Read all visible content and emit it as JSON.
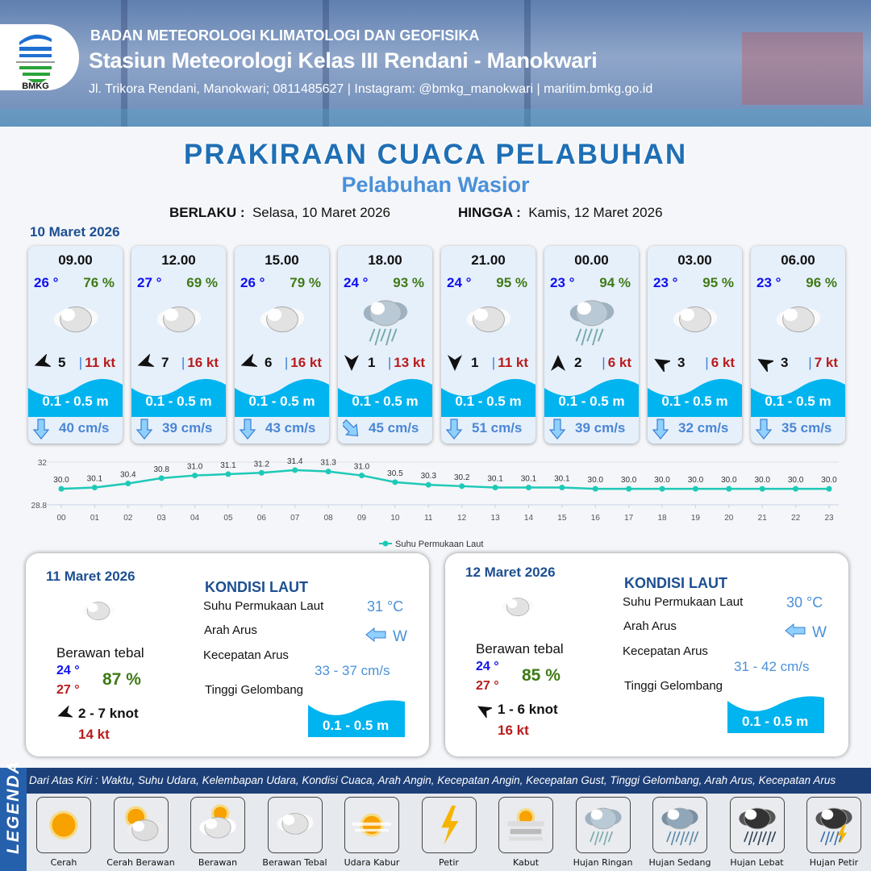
{
  "header": {
    "org": "BADAN METEOROLOGI KLIMATOLOGI DAN GEOFISIKA",
    "station": "Stasiun Meteorologi Kelas III Rendani - Manokwari",
    "contact": "Jl. Trikora Rendani, Manokwari; 0811485627 | Instagram: @bmkg_manokwari | maritim.bmkg.go.id",
    "logo_text": "BMKG"
  },
  "title": "PRAKIRAAN CUACA PELABUHAN",
  "subtitle": "Pelabuhan Wasior",
  "validity": {
    "from_label": "BERLAKU :",
    "from": "Selasa, 10 Maret 2026",
    "to_label": "HINGGA :",
    "to": "Kamis, 12 Maret 2026"
  },
  "day1": {
    "date": "10 Maret 2026",
    "cards": [
      {
        "time": "09.00",
        "temp": "26 °",
        "hum": "76 %",
        "weather": "berawan-tebal",
        "wind_dir_deg": 250,
        "wind": "5",
        "gust": "11 kt",
        "wave": "0.1 - 0.5 m",
        "current_dir_deg": 180,
        "current": "40 cm/s"
      },
      {
        "time": "12.00",
        "temp": "27 °",
        "hum": "69 %",
        "weather": "berawan-tebal",
        "wind_dir_deg": 250,
        "wind": "7",
        "gust": "16 kt",
        "wave": "0.1 - 0.5 m",
        "current_dir_deg": 180,
        "current": "39 cm/s"
      },
      {
        "time": "15.00",
        "temp": "26 °",
        "hum": "79 %",
        "weather": "berawan-tebal",
        "wind_dir_deg": 250,
        "wind": "6",
        "gust": "16 kt",
        "wave": "0.1 - 0.5 m",
        "current_dir_deg": 180,
        "current": "43 cm/s"
      },
      {
        "time": "18.00",
        "temp": "24 °",
        "hum": "93 %",
        "weather": "hujan-ringan",
        "wind_dir_deg": 180,
        "wind": "1",
        "gust": "13 kt",
        "wave": "0.1 - 0.5 m",
        "current_dir_deg": 135,
        "current": "45 cm/s"
      },
      {
        "time": "21.00",
        "temp": "24 °",
        "hum": "95 %",
        "weather": "berawan-tebal",
        "wind_dir_deg": 180,
        "wind": "1",
        "gust": "11 kt",
        "wave": "0.1 - 0.5 m",
        "current_dir_deg": 180,
        "current": "51 cm/s"
      },
      {
        "time": "00.00",
        "temp": "23 °",
        "hum": "94 %",
        "weather": "hujan-ringan",
        "wind_dir_deg": 0,
        "wind": "2",
        "gust": "6 kt",
        "wave": "0.1 - 0.5 m",
        "current_dir_deg": 180,
        "current": "39 cm/s"
      },
      {
        "time": "03.00",
        "temp": "23 °",
        "hum": "95 %",
        "weather": "berawan-tebal",
        "wind_dir_deg": 300,
        "wind": "3",
        "gust": "6 kt",
        "wave": "0.1 - 0.5 m",
        "current_dir_deg": 180,
        "current": "32 cm/s"
      },
      {
        "time": "06.00",
        "temp": "23 °",
        "hum": "96 %",
        "weather": "berawan-tebal",
        "wind_dir_deg": 300,
        "wind": "3",
        "gust": "7 kt",
        "wave": "0.1 - 0.5 m",
        "current_dir_deg": 180,
        "current": "35 cm/s"
      }
    ]
  },
  "chart_data": {
    "type": "line",
    "categories": [
      "00",
      "01",
      "02",
      "03",
      "04",
      "05",
      "06",
      "07",
      "08",
      "09",
      "10",
      "11",
      "12",
      "13",
      "14",
      "15",
      "16",
      "17",
      "18",
      "19",
      "20",
      "21",
      "22",
      "23"
    ],
    "series": [
      {
        "name": "Suhu Permukaan Laut",
        "values": [
          30.0,
          30.1,
          30.4,
          30.8,
          31.0,
          31.1,
          31.2,
          31.4,
          31.3,
          31.0,
          30.5,
          30.3,
          30.2,
          30.1,
          30.1,
          30.1,
          30.0,
          30.0,
          30.0,
          30.0,
          30.0,
          30.0,
          30.0,
          30.0
        ]
      }
    ],
    "ylim": [
      28.8,
      32
    ],
    "yticks": [
      "32",
      "28.8"
    ],
    "grid": true,
    "legend": "bottom",
    "color": "#1ec9b7"
  },
  "panels": [
    {
      "date": "11 Maret 2026",
      "weather": "berawan-tebal",
      "weather_label": "Berawan tebal",
      "tmin": "24 °",
      "tmax": "27 °",
      "hum": "87 %",
      "wind": "2  - 7 knot",
      "wind_dir_deg": 250,
      "gust": "14 kt",
      "kondisi": "KONDISI LAUT",
      "sst_label": "Suhu Permukaan Laut",
      "sst": "31 °C",
      "arah_label": "Arah Arus",
      "arah": "W",
      "kec_label": "Kecepatan Arus",
      "kec": "33  - 37 cm/s",
      "tinggi_label": "Tinggi Gelombang",
      "wave": "0.1 - 0.5 m"
    },
    {
      "date": "12 Maret 2026",
      "weather": "berawan-tebal",
      "weather_label": "Berawan tebal",
      "tmin": "24 °",
      "tmax": "27 °",
      "hum": "85 %",
      "wind": "1  - 6 knot",
      "wind_dir_deg": 300,
      "gust": "16 kt",
      "kondisi": "KONDISI LAUT",
      "sst_label": "Suhu Permukaan Laut",
      "sst": "30 °C",
      "arah_label": "Arah Arus",
      "arah": "W",
      "kec_label": "Kecepatan Arus",
      "kec": "31 - 42 cm/s",
      "tinggi_label": "Tinggi Gelombang",
      "wave": "0.1 - 0.5 m"
    }
  ],
  "legend": {
    "title": "LEGENDA",
    "desc": "Dari Atas Kiri : Waktu, Suhu Udara, Kelembapan Udara, Kondisi Cuaca, Arah Angin, Kecepatan Angin, Kecepatan Gust, Tinggi Gelombang, Arah Arus, Kecepatan Arus",
    "items": [
      {
        "label": "Cerah",
        "icon": "cerah"
      },
      {
        "label": "Cerah Berawan",
        "icon": "cerah-berawan"
      },
      {
        "label": "Berawan",
        "icon": "berawan"
      },
      {
        "label": "Berawan Tebal",
        "icon": "berawan-tebal"
      },
      {
        "label": "Udara Kabur",
        "icon": "udara-kabur"
      },
      {
        "label": "Petir",
        "icon": "petir"
      },
      {
        "label": "Kabut",
        "icon": "kabut"
      },
      {
        "label": "Hujan Ringan",
        "icon": "hujan-ringan"
      },
      {
        "label": "Hujan Sedang",
        "icon": "hujan-sedang"
      },
      {
        "label": "Hujan Lebat",
        "icon": "hujan-lebat"
      },
      {
        "label": "Hujan Petir",
        "icon": "hujan-petir"
      }
    ]
  }
}
